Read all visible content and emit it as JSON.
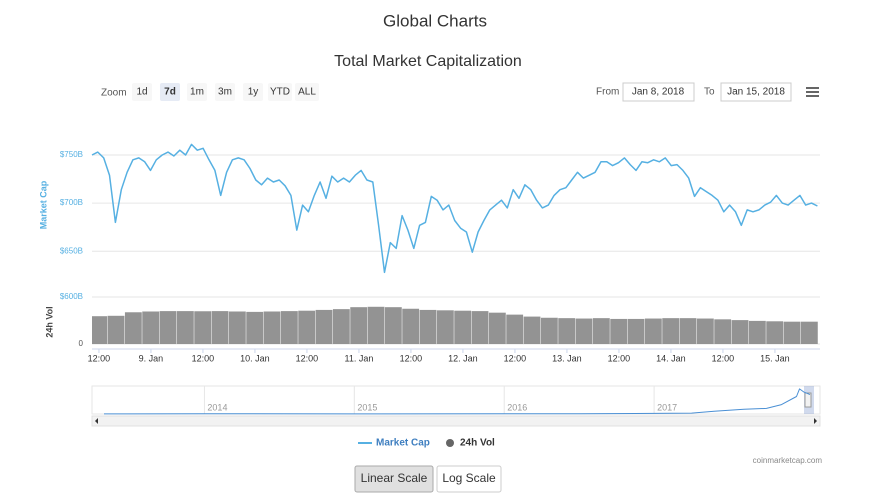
{
  "header": {
    "title": "Global Charts"
  },
  "controls": {
    "zoom_label": "Zoom",
    "zoom_buttons": [
      "1d",
      "7d",
      "1m",
      "3m",
      "1y",
      "YTD",
      "ALL"
    ],
    "zoom_selected": 1,
    "from_label": "From",
    "from": "Jan 8, 2018",
    "to_label": "To",
    "to": "Jan 15, 2018"
  },
  "chart_data": {
    "type": "line",
    "title": "Total Market Capitalization",
    "y_axis_label": "Market Cap",
    "grid": true,
    "x": [
      10.4,
      11.75,
      13.1,
      14.45,
      15.8,
      17.15,
      18.5,
      19.85,
      21.2,
      22.55,
      23.9,
      25.25,
      26.6,
      27.95,
      29.3,
      30.65,
      32,
      33.35,
      34.7,
      36.05,
      37.4,
      38.75,
      40.1,
      41.45,
      42.8,
      44.15,
      45.5,
      46.85,
      48.2,
      49.55,
      50.9,
      52.25,
      53.6,
      54.95,
      56.3,
      57.65,
      59,
      60.35,
      61.7,
      63.05,
      64.4,
      65.75,
      67.1,
      68.45,
      69.8,
      71.15,
      72.5,
      73.85,
      75.2,
      76.55,
      77.9,
      79.25,
      80.6,
      81.95,
      83.3,
      84.65,
      86,
      87.35,
      88.7,
      90.05,
      91.4,
      92.75,
      94.1,
      95.45,
      96.8,
      98.15,
      99.5,
      100.85,
      102.2,
      103.55,
      104.9,
      106.25,
      107.6,
      108.95,
      110.3,
      111.65,
      113,
      114.35,
      115.7,
      117.05,
      118.4,
      119.75,
      121.1,
      122.45,
      123.8,
      125.15,
      126.5,
      127.85,
      129.2,
      130.55,
      131.9,
      133.25,
      134.6,
      135.95,
      137.3,
      138.65,
      140,
      141.35,
      142.7,
      144.05,
      145.4,
      146.75,
      148.1,
      149.45,
      150.8,
      152.15,
      153.5,
      154.85,
      156.2,
      157.55,
      158.9,
      160.25,
      161.6,
      162.95,
      164.3,
      165.65,
      167,
      168.35,
      169.7,
      171.05,
      172.4,
      173.75,
      175.1,
      176.45,
      177.8
    ],
    "series": [
      {
        "name": "Market Cap",
        "color": "#56b0e2",
        "values": [
          750,
          753,
          747,
          729,
          680,
          714,
          732,
          745,
          747,
          743,
          734,
          745,
          750,
          753,
          749,
          755,
          750,
          761,
          755,
          757,
          745,
          734,
          708,
          732,
          745,
          747,
          745,
          736,
          724,
          719,
          726,
          722,
          724,
          718,
          708,
          672,
          698,
          691,
          708,
          722,
          705,
          728,
          722,
          726,
          722,
          729,
          734,
          724,
          722,
          677,
          628,
          659,
          653,
          687,
          672,
          653,
          677,
          680,
          707,
          703,
          693,
          698,
          682,
          674,
          670,
          649,
          670,
          682,
          693,
          698,
          703,
          695,
          714,
          705,
          719,
          714,
          703,
          695,
          698,
          708,
          714,
          716,
          724,
          732,
          726,
          729,
          732,
          743,
          743,
          739,
          742,
          747,
          740,
          734,
          743,
          742,
          745,
          743,
          747,
          739,
          740,
          734,
          726,
          707,
          716,
          712,
          708,
          703,
          691,
          698,
          691,
          677,
          693,
          691,
          693,
          698,
          701,
          708,
          700,
          698,
          703,
          708,
          698,
          700,
          697
        ]
      }
    ],
    "xlim": [
      10.4,
      178.4
    ],
    "xticks": [
      {
        "value": 12,
        "label": "12:00"
      },
      {
        "value": 24,
        "label": "9. Jan"
      },
      {
        "value": 36,
        "label": "12:00"
      },
      {
        "value": 48,
        "label": "10. Jan"
      },
      {
        "value": 60,
        "label": "12:00"
      },
      {
        "value": 72,
        "label": "11. Jan"
      },
      {
        "value": 84,
        "label": "12:00"
      },
      {
        "value": 96,
        "label": "12. Jan"
      },
      {
        "value": 108,
        "label": "12:00"
      },
      {
        "value": 120,
        "label": "13. Jan"
      },
      {
        "value": 132,
        "label": "12:00"
      },
      {
        "value": 144,
        "label": "14. Jan"
      },
      {
        "value": 156,
        "label": "12:00"
      },
      {
        "value": 168,
        "label": "15. Jan"
      }
    ],
    "ylim": [
      617,
      776
    ],
    "yticks": [
      {
        "value": 650,
        "label": "$650B"
      },
      {
        "value": 700,
        "label": "$700B"
      },
      {
        "value": 750,
        "label": "$750B"
      }
    ],
    "volume": {
      "type": "bar",
      "name": "24h Vol",
      "y_axis_label": "24h Vol",
      "color": "#808080",
      "x": [
        12,
        16,
        20,
        24,
        28,
        32,
        36,
        40,
        44,
        48,
        52,
        56,
        60,
        64,
        68,
        72,
        76,
        80,
        84,
        88,
        92,
        96,
        100,
        104,
        108,
        112,
        116,
        120,
        124,
        128,
        132,
        136,
        140,
        144,
        148,
        152,
        156,
        160,
        164,
        168,
        172,
        176
      ],
      "values": [
        355,
        360,
        405,
        415,
        420,
        420,
        418,
        420,
        415,
        410,
        415,
        420,
        425,
        435,
        445,
        470,
        475,
        470,
        450,
        435,
        430,
        425,
        420,
        400,
        375,
        350,
        335,
        330,
        325,
        330,
        320,
        320,
        325,
        330,
        330,
        325,
        315,
        305,
        295,
        290,
        285,
        285
      ],
      "ylim": [
        0,
        600
      ],
      "yticks": [
        0,
        {
          "value": 600,
          "label": "$600B"
        }
      ]
    },
    "navigator": {
      "type": "line",
      "color": "#4a8fd4",
      "x": [
        2013.33,
        2014,
        2015,
        2016,
        2016.5,
        2017,
        2017.25,
        2017.4,
        2017.6,
        2017.75,
        2017.85,
        2017.95,
        2017.97,
        2018,
        2018.04
      ],
      "values": [
        2,
        8,
        4,
        6,
        10,
        18,
        28,
        90,
        150,
        180,
        300,
        560,
        800,
        700,
        620
      ],
      "xlim": [
        2013.33,
        2018.04
      ],
      "ylim": [
        0,
        830
      ],
      "xticks": [
        2014,
        2015,
        2016,
        2017
      ]
    },
    "credit": "coinmarketcap.com"
  },
  "scale_buttons": {
    "labels": [
      "Linear Scale",
      "Log Scale"
    ],
    "selected": 0
  }
}
